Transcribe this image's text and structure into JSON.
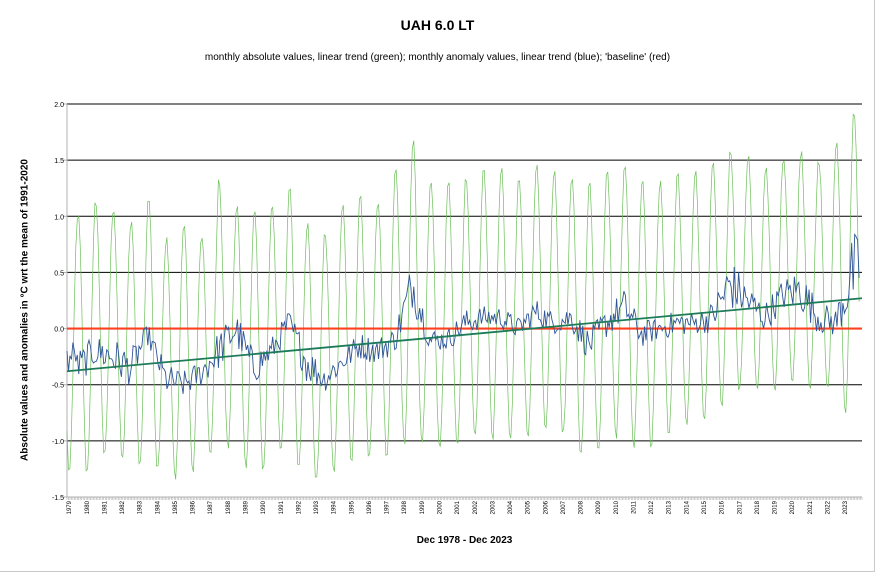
{
  "chart_data": {
    "type": "line",
    "title": "UAH 6.0 LT",
    "subtitle": "monthly absolute values, linear trend (green); monthly anomaly values, linear trend (blue); 'baseline' (red)",
    "xlabel": "Dec 1978 - Dec 2023",
    "ylabel": "Absolute values and anomalies in °C wrt the mean of 1991-2020",
    "ylim": [
      -1.5,
      2.0
    ],
    "y_ticks": [
      "2.0",
      "1.5",
      "1.0",
      "0.5",
      "0.0",
      "-0.5",
      "-1.0",
      "-1.5"
    ],
    "x_range": [
      1978.917,
      2024.0
    ],
    "x_tick_labels": [
      "1979",
      "1980",
      "1981",
      "1982",
      "1983",
      "1984",
      "1985",
      "1986",
      "1987",
      "1988",
      "1989",
      "1990",
      "1991",
      "1992",
      "1993",
      "1994",
      "1995",
      "1996",
      "1997",
      "1998",
      "1999",
      "2000",
      "2001",
      "2002",
      "2003",
      "2004",
      "2005",
      "2006",
      "2007",
      "2008",
      "2009",
      "2010",
      "2011",
      "2012",
      "2013",
      "2014",
      "2015",
      "2016",
      "2017",
      "2018",
      "2019",
      "2020",
      "2021",
      "2022",
      "2023"
    ],
    "grid": true,
    "series": [
      {
        "name": "monthly absolute values",
        "color": "#6cbf5a",
        "note": "approximate seasonal peaks/troughs per year read off the chart",
        "years": [
          1979,
          1980,
          1981,
          1982,
          1983,
          1984,
          1985,
          1986,
          1987,
          1988,
          1989,
          1990,
          1991,
          1992,
          1993,
          1994,
          1995,
          1996,
          1997,
          1998,
          1999,
          2000,
          2001,
          2002,
          2003,
          2004,
          2005,
          2006,
          2007,
          2008,
          2009,
          2010,
          2011,
          2012,
          2013,
          2014,
          2015,
          2016,
          2017,
          2018,
          2019,
          2020,
          2021,
          2022,
          2023
        ],
        "yearly_max": [
          1.0,
          1.15,
          1.1,
          0.95,
          1.2,
          0.8,
          0.95,
          0.8,
          1.35,
          1.1,
          1.05,
          1.1,
          1.3,
          0.95,
          0.85,
          1.1,
          1.2,
          1.15,
          1.4,
          1.7,
          1.35,
          1.3,
          1.35,
          1.45,
          1.45,
          1.35,
          1.45,
          1.4,
          1.35,
          1.3,
          1.45,
          1.5,
          1.35,
          1.3,
          1.4,
          1.4,
          1.45,
          1.6,
          1.55,
          1.45,
          1.55,
          1.6,
          1.5,
          1.65,
          1.95
        ],
        "yearly_min": [
          -1.4,
          -1.2,
          -1.1,
          -1.25,
          -1.2,
          -1.3,
          -1.35,
          -1.2,
          -1.1,
          -1.05,
          -1.4,
          -1.15,
          -1.1,
          -1.35,
          -1.4,
          -1.2,
          -1.15,
          -1.2,
          -1.1,
          -1.0,
          -1.1,
          -1.1,
          -1.0,
          -0.95,
          -1.0,
          -1.0,
          -0.95,
          -0.9,
          -1.0,
          -1.25,
          -1.0,
          -0.95,
          -1.15,
          -1.0,
          -0.9,
          -0.85,
          -0.8,
          -0.6,
          -0.55,
          -0.6,
          -0.55,
          -0.45,
          -0.6,
          -0.55,
          -0.9
        ]
      },
      {
        "name": "monthly anomaly values",
        "color": "#2f5597",
        "years": [
          1979,
          1980,
          1981,
          1982,
          1983,
          1984,
          1985,
          1986,
          1987,
          1988,
          1989,
          1990,
          1991,
          1992,
          1993,
          1994,
          1995,
          1996,
          1997,
          1998,
          1999,
          2000,
          2001,
          2002,
          2003,
          2004,
          2005,
          2006,
          2007,
          2008,
          2009,
          2010,
          2011,
          2012,
          2013,
          2014,
          2015,
          2016,
          2017,
          2018,
          2019,
          2020,
          2021,
          2022,
          2023
        ],
        "yearly_mean": [
          -0.35,
          -0.2,
          -0.25,
          -0.35,
          -0.05,
          -0.45,
          -0.5,
          -0.4,
          -0.2,
          0.0,
          -0.35,
          -0.2,
          0.05,
          -0.3,
          -0.45,
          -0.3,
          -0.15,
          -0.2,
          -0.1,
          0.4,
          -0.1,
          -0.1,
          0.05,
          0.1,
          0.1,
          0.0,
          0.15,
          0.05,
          0.1,
          -0.15,
          0.05,
          0.2,
          -0.05,
          0.0,
          0.05,
          0.05,
          0.1,
          0.4,
          0.25,
          0.1,
          0.3,
          0.35,
          0.1,
          0.05,
          0.5
        ],
        "yearly_max": [
          -0.1,
          0.0,
          0.05,
          -0.15,
          0.05,
          -0.25,
          -0.35,
          -0.25,
          0.1,
          0.25,
          -0.15,
          -0.05,
          0.2,
          -0.05,
          -0.3,
          -0.15,
          0.0,
          -0.05,
          0.05,
          0.62,
          0.0,
          0.0,
          0.2,
          0.2,
          0.2,
          0.1,
          0.3,
          0.15,
          0.25,
          0.0,
          0.2,
          0.38,
          0.1,
          0.1,
          0.2,
          0.15,
          0.3,
          0.7,
          0.45,
          0.3,
          0.45,
          0.6,
          0.3,
          0.3,
          0.95
        ],
        "yearly_min": [
          -0.5,
          -0.35,
          -0.4,
          -0.55,
          -0.2,
          -0.6,
          -0.65,
          -0.55,
          -0.35,
          -0.15,
          -0.55,
          -0.35,
          -0.1,
          -0.5,
          -0.6,
          -0.45,
          -0.3,
          -0.35,
          -0.25,
          0.05,
          -0.25,
          -0.25,
          -0.1,
          -0.05,
          -0.05,
          -0.15,
          0.0,
          -0.1,
          -0.05,
          -0.35,
          -0.15,
          0.0,
          -0.2,
          -0.15,
          -0.1,
          -0.1,
          -0.05,
          0.1,
          0.05,
          -0.05,
          0.1,
          0.1,
          -0.05,
          -0.05,
          0.05
        ]
      }
    ],
    "trend": {
      "name": "linear trend",
      "color": "#1e7b5a",
      "start": [
        1978.917,
        -0.38
      ],
      "end": [
        2024.0,
        0.27
      ]
    },
    "baseline": {
      "name": "baseline",
      "color": "#ff4020",
      "value": 0.0
    }
  }
}
